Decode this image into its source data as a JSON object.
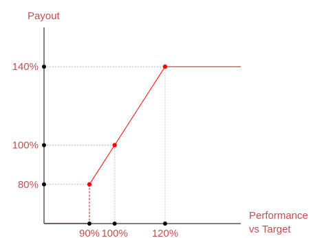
{
  "chart_data": {
    "type": "line",
    "title": "",
    "ylabel": "Payout",
    "xlabel_lines": [
      "Performance",
      "vs Target"
    ],
    "x_ticks": [
      {
        "value": 90,
        "label": "90%"
      },
      {
        "value": 100,
        "label": "100%"
      },
      {
        "value": 120,
        "label": "120%"
      }
    ],
    "y_ticks": [
      {
        "value": 80,
        "label": "80%"
      },
      {
        "value": 100,
        "label": "100%"
      },
      {
        "value": 140,
        "label": "140%"
      }
    ],
    "series": [
      {
        "color": "#ff0000",
        "points": [
          {
            "x": 90,
            "y": 80
          },
          {
            "x": 100,
            "y": 100
          },
          {
            "x": 120,
            "y": 140
          }
        ],
        "extends_right_at_max": true,
        "drops_to_zero_below_min": true
      }
    ],
    "xlim": [
      72,
      150
    ],
    "ylim": [
      60,
      160
    ],
    "grid": "dotted reference lines at key points",
    "label_color": "#c0504d",
    "axis_color": "#000000",
    "reference_line_color": "#bfbfbf"
  }
}
